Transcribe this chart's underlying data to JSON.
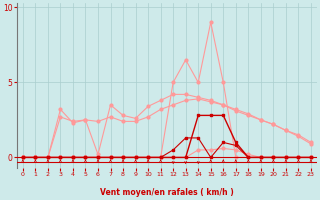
{
  "xlabel": "Vent moyen/en rafales ( km/h )",
  "bg_color": "#ceeaea",
  "grid_color": "#aacece",
  "dark_red": "#cc0000",
  "light_red": "#ff9999",
  "xlim": [
    -0.5,
    23.5
  ],
  "ylim": [
    -0.7,
    10.3
  ],
  "yticks": [
    0,
    5,
    10
  ],
  "xticks": [
    0,
    1,
    2,
    3,
    4,
    5,
    6,
    7,
    8,
    9,
    10,
    11,
    12,
    13,
    14,
    15,
    16,
    17,
    18,
    19,
    20,
    21,
    22,
    23
  ],
  "s_peak_x": [
    0,
    1,
    2,
    3,
    4,
    5,
    6,
    7,
    8,
    9,
    10,
    11,
    12,
    13,
    14,
    15,
    16,
    17,
    18,
    19,
    20,
    21,
    22,
    23
  ],
  "s_peak_y": [
    0,
    0,
    0,
    0,
    0,
    0,
    0,
    0,
    0,
    0,
    0,
    0,
    5.0,
    6.5,
    5.0,
    9.0,
    5.0,
    0,
    0,
    0,
    0,
    0,
    0,
    0
  ],
  "s_up1_x": [
    0,
    1,
    2,
    3,
    4,
    5,
    6,
    7,
    8,
    9,
    10,
    11,
    12,
    13,
    14,
    15,
    16,
    17,
    18,
    19,
    20,
    21,
    22,
    23
  ],
  "s_up1_y": [
    0,
    0,
    0,
    3.2,
    2.3,
    2.5,
    0.2,
    3.5,
    2.8,
    2.6,
    3.4,
    3.8,
    4.2,
    4.2,
    4.0,
    3.8,
    3.5,
    3.2,
    2.9,
    2.5,
    2.2,
    1.8,
    1.5,
    1.0
  ],
  "s_up2_x": [
    0,
    1,
    2,
    3,
    4,
    5,
    6,
    7,
    8,
    9,
    10,
    11,
    12,
    13,
    14,
    15,
    16,
    17,
    18,
    19,
    20,
    21,
    22,
    23
  ],
  "s_up2_y": [
    0,
    0,
    0,
    2.7,
    2.4,
    2.5,
    2.4,
    2.7,
    2.4,
    2.4,
    2.7,
    3.2,
    3.5,
    3.8,
    3.9,
    3.7,
    3.5,
    3.1,
    2.8,
    2.5,
    2.2,
    1.8,
    1.4,
    0.9
  ],
  "s_low_x": [
    0,
    1,
    2,
    3,
    4,
    5,
    6,
    7,
    8,
    9,
    10,
    11,
    12,
    13,
    14,
    15,
    16,
    17,
    18,
    19,
    20,
    21,
    22,
    23
  ],
  "s_low_y": [
    0,
    0,
    0,
    0,
    0,
    0,
    0,
    0,
    0,
    0,
    0,
    0,
    0,
    0,
    0.5,
    0.5,
    0.6,
    0.5,
    0.2,
    0,
    0,
    0,
    0,
    0
  ],
  "s_dark_x": [
    0,
    1,
    2,
    3,
    4,
    5,
    6,
    7,
    8,
    9,
    10,
    11,
    12,
    13,
    14,
    15,
    16,
    17,
    18,
    19,
    20,
    21,
    22,
    23
  ],
  "s_dark_y": [
    0,
    0,
    0,
    0,
    0,
    0,
    0,
    0,
    0,
    0,
    0,
    0,
    0,
    0,
    2.8,
    2.8,
    2.8,
    1.0,
    0,
    0,
    0,
    0,
    0,
    0
  ],
  "s_dark2_x": [
    0,
    1,
    2,
    3,
    4,
    5,
    6,
    7,
    8,
    9,
    10,
    11,
    12,
    13,
    14,
    15,
    16,
    17,
    18,
    19,
    20,
    21,
    22,
    23
  ],
  "s_dark2_y": [
    0,
    0,
    0,
    0,
    0,
    0,
    0,
    0,
    0,
    0,
    0,
    0,
    0.5,
    1.3,
    1.3,
    0,
    1.0,
    0.8,
    0,
    0,
    0,
    0,
    0,
    0
  ],
  "arrow_dirs": [
    "u",
    "u",
    "u",
    "u",
    "u",
    "u",
    "u",
    "u",
    "u",
    "u",
    "u",
    "u",
    "d",
    "d",
    "d",
    "u",
    "u",
    "u",
    "u",
    "u",
    "u",
    "u",
    "u",
    "u"
  ]
}
